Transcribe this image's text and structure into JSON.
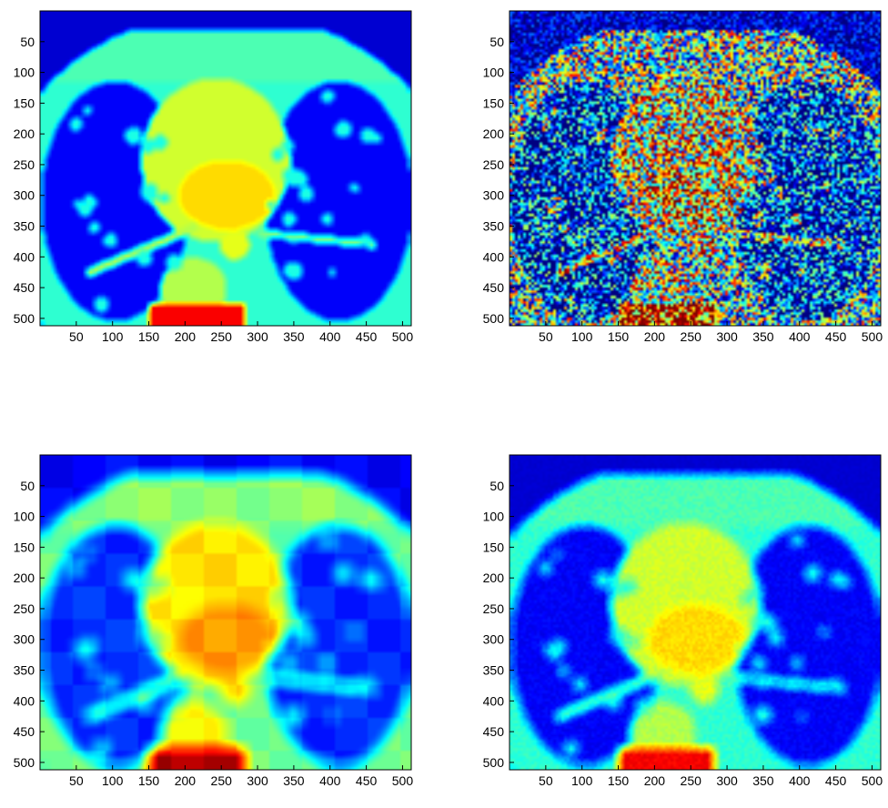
{
  "figure": {
    "panels": [
      {
        "id": "top-left",
        "variant": "original",
        "noise": 0.0,
        "blur": 0.6,
        "blocky": false
      },
      {
        "id": "top-right",
        "variant": "noisy",
        "noise": 1.0,
        "blur": 0.0,
        "blocky": false
      },
      {
        "id": "bottom-left",
        "variant": "denoised-blocky",
        "noise": 0.0,
        "blur": 3.0,
        "blocky": true
      },
      {
        "id": "bottom-right",
        "variant": "denoised-smooth",
        "noise": 0.05,
        "blur": 1.5,
        "blocky": false
      }
    ],
    "x_ticks": [
      "50",
      "100",
      "150",
      "200",
      "250",
      "300",
      "350",
      "400",
      "450",
      "500"
    ],
    "y_ticks": [
      "50",
      "100",
      "150",
      "200",
      "250",
      "300",
      "350",
      "400",
      "450",
      "500"
    ],
    "x_range": [
      0,
      512
    ],
    "y_range": [
      0,
      512
    ],
    "colormap": "jet"
  }
}
